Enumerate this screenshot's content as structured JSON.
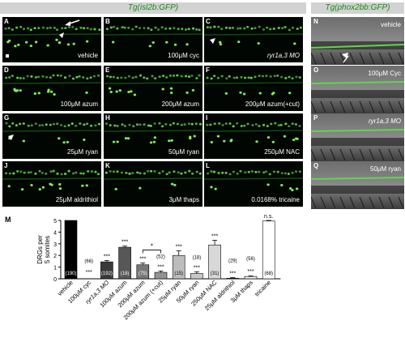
{
  "headers": {
    "left": "Tg(isl2b:GFP)",
    "right": "Tg(phox2bb:GFP)"
  },
  "panels": [
    {
      "letter": "A",
      "label": "vehicle"
    },
    {
      "letter": "B",
      "label": "100μM cyc"
    },
    {
      "letter": "C",
      "label": "ryr1a,3 MO"
    },
    {
      "letter": "D",
      "label": "100μM azum"
    },
    {
      "letter": "E",
      "label": "200μM azum"
    },
    {
      "letter": "F",
      "label": "200μM azum(+cut)"
    },
    {
      "letter": "G",
      "label": "25μM ryan"
    },
    {
      "letter": "H",
      "label": "50μM ryan"
    },
    {
      "letter": "I",
      "label": "250μM NAC"
    },
    {
      "letter": "J",
      "label": "25μM aldrithiol"
    },
    {
      "letter": "K",
      "label": "3μM thaps"
    },
    {
      "letter": "L",
      "label": "0.0168% tricaine"
    }
  ],
  "right_panels": [
    {
      "letter": "N",
      "label": "vehicle"
    },
    {
      "letter": "O",
      "label": "100μM Cyc"
    },
    {
      "letter": "P",
      "label": "ryr1a,3 MO"
    },
    {
      "letter": "Q",
      "label": "50μM ryan"
    }
  ],
  "chart_data": {
    "panel_letter": "M",
    "type": "bar",
    "ylabel": "DRGs per 5 somites",
    "ylim": [
      0,
      5
    ],
    "yticks": [
      0,
      1,
      2,
      3,
      4,
      5
    ],
    "categories": [
      "vehicle",
      "100μM cyc",
      "ryr1a,3 MO",
      "100μM azum",
      "200μM azum",
      "200μM azum (+cut)",
      "25μM ryan",
      "50μM ryan",
      "250μM NAC",
      "25μM aldrithiol",
      "3μM thaps",
      "tricaine"
    ],
    "values": [
      5.0,
      0.0,
      1.45,
      2.7,
      1.2,
      0.55,
      2.0,
      0.45,
      2.9,
      0.05,
      0.2,
      4.95
    ],
    "errors": [
      0,
      0,
      0.12,
      0.1,
      0.15,
      0.12,
      0.4,
      0.15,
      0.4,
      0.05,
      0.05,
      0.05
    ],
    "colors": [
      "#000000",
      "#ffffff",
      "#3a3a3a",
      "#575757",
      "#777777",
      "#939393",
      "#bdbdbd",
      "#c9c9c9",
      "#d8d8d8",
      "#e8e8e8",
      "#eeeeee",
      "#ffffff"
    ],
    "n_labels": [
      "(190)",
      "(66)",
      "(192)",
      "(18)",
      "(75)",
      "(52)",
      "(15)",
      "(18)",
      "(31)",
      "(29)",
      "(56)",
      "(68)"
    ],
    "significance": [
      "",
      "***",
      "***",
      "***",
      "***",
      "***",
      "***",
      "***",
      "***",
      "***",
      "***",
      "n.s."
    ],
    "bracket": {
      "from": 4,
      "to": 5,
      "label": "*"
    }
  }
}
